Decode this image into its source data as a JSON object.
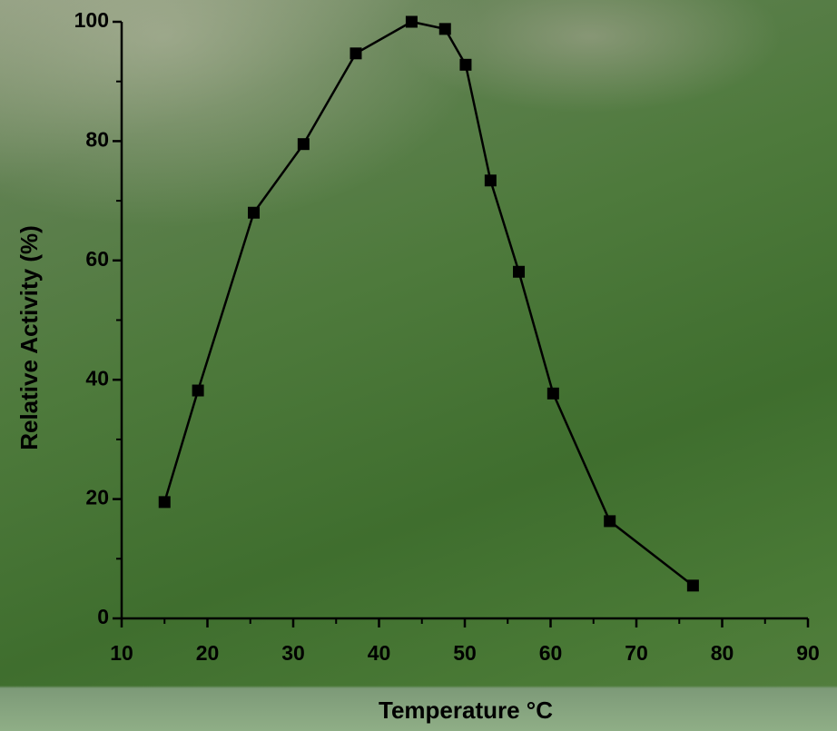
{
  "chart_data": {
    "type": "line",
    "x_label": "Temperature °C",
    "y_label": "Relative Activity (%)",
    "x": [
      15.0,
      18.9,
      25.4,
      31.2,
      37.3,
      43.8,
      47.7,
      50.1,
      53.0,
      56.3,
      60.3,
      66.9,
      76.6
    ],
    "series": [
      {
        "color": "#000000",
        "values": [
          19.5,
          38.2,
          68.0,
          79.5,
          94.7,
          100,
          98.8,
          92.8,
          73.4,
          58.1,
          37.7,
          16.3,
          5.5
        ]
      }
    ],
    "xlim": [
      10,
      90
    ],
    "xticks": [
      10,
      20,
      30,
      40,
      50,
      60,
      70,
      80,
      90
    ],
    "xminorticks": [
      15,
      25,
      35,
      45,
      55,
      65,
      75,
      85
    ],
    "ylim": [
      0,
      100
    ],
    "yticks": [
      0,
      20,
      40,
      60,
      80,
      100
    ],
    "yminorticks": [
      10,
      30,
      50,
      70,
      90
    ],
    "marker": "square",
    "grid": false
  }
}
